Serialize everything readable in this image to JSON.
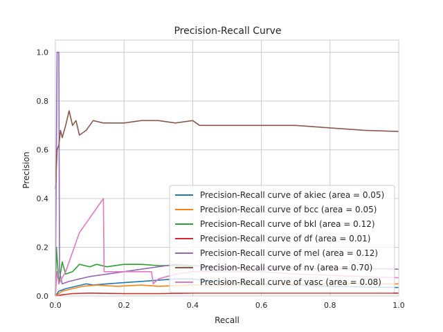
{
  "chart_data": {
    "type": "line",
    "title": "Precision-Recall Curve",
    "xlabel": "Recall",
    "ylabel": "Precision",
    "xlim": [
      0,
      1
    ],
    "ylim": [
      0,
      1.05
    ],
    "xticks": [
      0.0,
      0.2,
      0.4,
      0.6,
      0.8,
      1.0
    ],
    "xtick_labels": [
      "0.0",
      "0.2",
      "0.4",
      "0.6",
      "0.8",
      "1.0"
    ],
    "yticks": [
      0.0,
      0.2,
      0.4,
      0.6,
      0.8,
      1.0
    ],
    "ytick_labels": [
      "0.0",
      "0.2",
      "0.4",
      "0.6",
      "0.8",
      "1.0"
    ],
    "grid": true,
    "legend": "lower-right",
    "series": [
      {
        "name": "Precision-Recall curve of akiec (area = 0.05)",
        "color": "#1f77b4",
        "points": [
          [
            0.0,
            0.0
          ],
          [
            0.01,
            0.02
          ],
          [
            0.03,
            0.03
          ],
          [
            0.06,
            0.04
          ],
          [
            0.09,
            0.05
          ],
          [
            0.11,
            0.045
          ],
          [
            0.15,
            0.05
          ],
          [
            0.2,
            0.055
          ],
          [
            0.25,
            0.06
          ],
          [
            0.3,
            0.065
          ],
          [
            0.35,
            0.07
          ],
          [
            0.4,
            0.07
          ],
          [
            0.45,
            0.06
          ],
          [
            0.5,
            0.055
          ],
          [
            0.55,
            0.05
          ],
          [
            0.6,
            0.05
          ],
          [
            0.7,
            0.045
          ],
          [
            0.8,
            0.04
          ],
          [
            0.9,
            0.037
          ],
          [
            1.0,
            0.035
          ]
        ]
      },
      {
        "name": "Precision-Recall curve of bcc (area = 0.05)",
        "color": "#ff7f0e",
        "points": [
          [
            0.0,
            0.0
          ],
          [
            0.02,
            0.02
          ],
          [
            0.05,
            0.03
          ],
          [
            0.08,
            0.04
          ],
          [
            0.12,
            0.045
          ],
          [
            0.18,
            0.04
          ],
          [
            0.25,
            0.045
          ],
          [
            0.3,
            0.04
          ],
          [
            0.4,
            0.045
          ],
          [
            0.5,
            0.045
          ],
          [
            0.6,
            0.045
          ],
          [
            0.7,
            0.05
          ],
          [
            0.8,
            0.05
          ],
          [
            0.9,
            0.05
          ],
          [
            1.0,
            0.05
          ]
        ]
      },
      {
        "name": "Precision-Recall curve of bkl (area = 0.12)",
        "color": "#2ca02c",
        "points": [
          [
            0.0,
            0.0
          ],
          [
            0.003,
            0.2
          ],
          [
            0.01,
            0.05
          ],
          [
            0.02,
            0.14
          ],
          [
            0.03,
            0.09
          ],
          [
            0.05,
            0.1
          ],
          [
            0.07,
            0.13
          ],
          [
            0.1,
            0.12
          ],
          [
            0.12,
            0.13
          ],
          [
            0.15,
            0.12
          ],
          [
            0.2,
            0.13
          ],
          [
            0.25,
            0.13
          ],
          [
            0.3,
            0.125
          ],
          [
            0.35,
            0.125
          ],
          [
            0.4,
            0.12
          ]
        ]
      },
      {
        "name": "Precision-Recall curve of df (area = 0.01)",
        "color": "#d62728",
        "points": [
          [
            0.0,
            0.0
          ],
          [
            0.02,
            0.005
          ],
          [
            0.05,
            0.01
          ],
          [
            0.1,
            0.012
          ],
          [
            0.2,
            0.01
          ],
          [
            0.3,
            0.01
          ],
          [
            0.4,
            0.012
          ],
          [
            0.6,
            0.012
          ],
          [
            0.8,
            0.012
          ],
          [
            1.0,
            0.012
          ]
        ]
      },
      {
        "name": "Precision-Recall curve of mel (area = 0.12)",
        "color": "#9467bd",
        "points": [
          [
            0.0,
            0.0
          ],
          [
            0.005,
            1.0
          ],
          [
            0.01,
            1.0
          ],
          [
            0.012,
            0.1
          ],
          [
            0.02,
            0.05
          ],
          [
            0.04,
            0.06
          ],
          [
            0.07,
            0.07
          ],
          [
            0.1,
            0.08
          ],
          [
            0.15,
            0.09
          ],
          [
            0.2,
            0.1
          ],
          [
            0.25,
            0.11
          ],
          [
            0.3,
            0.12
          ],
          [
            0.35,
            0.13
          ],
          [
            0.45,
            0.12
          ],
          [
            0.55,
            0.115
          ],
          [
            0.65,
            0.115
          ],
          [
            0.75,
            0.112
          ],
          [
            0.85,
            0.112
          ],
          [
            0.95,
            0.112
          ],
          [
            1.0,
            0.11
          ]
        ]
      },
      {
        "name": "Precision-Recall curve of nv (area = 0.70)",
        "color": "#8c564b",
        "points": [
          [
            0.0,
            0.44
          ],
          [
            0.005,
            0.6
          ],
          [
            0.01,
            0.62
          ],
          [
            0.015,
            0.68
          ],
          [
            0.02,
            0.65
          ],
          [
            0.03,
            0.7
          ],
          [
            0.04,
            0.76
          ],
          [
            0.05,
            0.7
          ],
          [
            0.06,
            0.72
          ],
          [
            0.07,
            0.66
          ],
          [
            0.09,
            0.68
          ],
          [
            0.11,
            0.72
          ],
          [
            0.14,
            0.71
          ],
          [
            0.2,
            0.71
          ],
          [
            0.25,
            0.72
          ],
          [
            0.3,
            0.72
          ],
          [
            0.35,
            0.71
          ],
          [
            0.4,
            0.72
          ],
          [
            0.42,
            0.7
          ],
          [
            0.5,
            0.7
          ],
          [
            0.6,
            0.7
          ],
          [
            0.7,
            0.7
          ],
          [
            0.8,
            0.69
          ],
          [
            0.9,
            0.68
          ],
          [
            1.0,
            0.675
          ]
        ]
      },
      {
        "name": "Precision-Recall curve of vasc (area = 0.08)",
        "color": "#e377c2",
        "points": [
          [
            0.0,
            0.0
          ],
          [
            0.005,
            0.1
          ],
          [
            0.01,
            0.05
          ],
          [
            0.03,
            0.1
          ],
          [
            0.07,
            0.26
          ],
          [
            0.14,
            0.4
          ],
          [
            0.142,
            0.1
          ],
          [
            0.2,
            0.1
          ],
          [
            0.28,
            0.1
          ],
          [
            0.285,
            0.05
          ],
          [
            0.3,
            0.07
          ],
          [
            0.35,
            0.09
          ],
          [
            0.4,
            0.1
          ],
          [
            0.5,
            0.1
          ],
          [
            0.6,
            0.1
          ],
          [
            0.7,
            0.09
          ],
          [
            0.8,
            0.085
          ],
          [
            0.9,
            0.08
          ],
          [
            1.0,
            0.075
          ]
        ]
      }
    ]
  }
}
